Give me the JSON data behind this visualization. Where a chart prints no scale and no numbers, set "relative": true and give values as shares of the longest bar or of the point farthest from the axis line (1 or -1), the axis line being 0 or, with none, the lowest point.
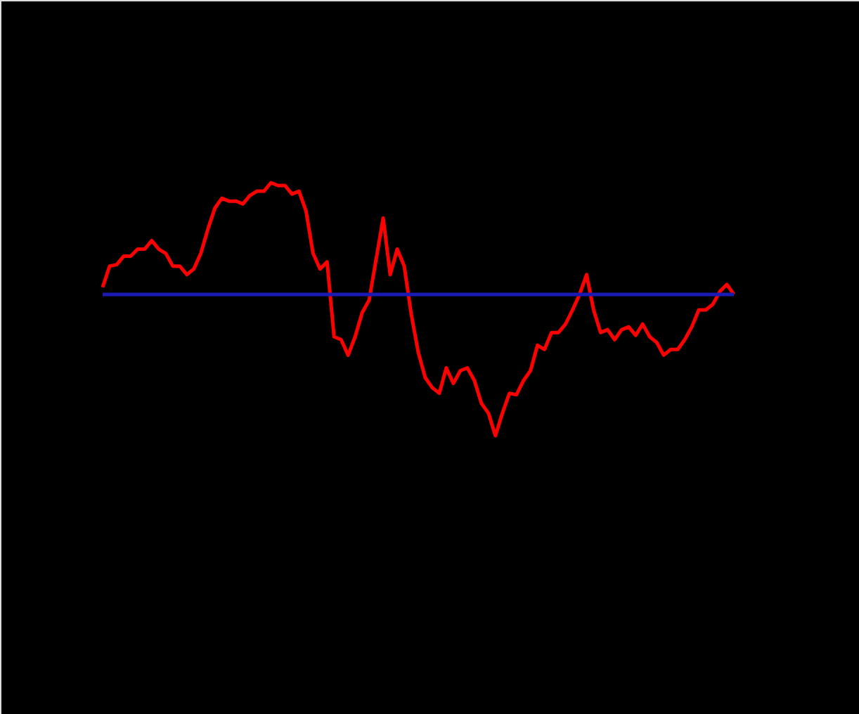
{
  "chart_data": {
    "type": "line",
    "relative": true,
    "categories": [
      null,
      null,
      null,
      null,
      null,
      null,
      null,
      null,
      null,
      null,
      null,
      null,
      null,
      null,
      null,
      null,
      null,
      null,
      null,
      null,
      null,
      null,
      null,
      null,
      null,
      null,
      null,
      null,
      null,
      null,
      null,
      null,
      null,
      null,
      null,
      null,
      null,
      null,
      null,
      null,
      null,
      null,
      null,
      null,
      null,
      null,
      null,
      null,
      null,
      null,
      null,
      null,
      null,
      null,
      null,
      null,
      null,
      null,
      null,
      null,
      null,
      null,
      null,
      null,
      null,
      null,
      null,
      null,
      null,
      null,
      null,
      null,
      null,
      null,
      null,
      null,
      null,
      null,
      null,
      null,
      null,
      null,
      null,
      null,
      null,
      null,
      null,
      null,
      null,
      null,
      null
    ],
    "series": [
      {
        "color": "#ff0000",
        "values": [
          0.05,
          0.2,
          0.21,
          0.27,
          0.27,
          0.32,
          0.32,
          0.38,
          0.32,
          0.29,
          0.2,
          0.2,
          0.14,
          0.18,
          0.29,
          0.46,
          0.61,
          0.68,
          0.66,
          0.66,
          0.64,
          0.7,
          0.73,
          0.73,
          0.79,
          0.77,
          0.77,
          0.71,
          0.73,
          0.59,
          0.29,
          0.18,
          0.23,
          -0.3,
          -0.32,
          -0.43,
          -0.3,
          -0.13,
          -0.04,
          0.25,
          0.54,
          0.14,
          0.32,
          0.2,
          -0.14,
          -0.41,
          -0.59,
          -0.66,
          -0.7,
          -0.52,
          -0.63,
          -0.54,
          -0.52,
          -0.61,
          -0.77,
          -0.84,
          -1,
          -0.84,
          -0.7,
          -0.71,
          -0.61,
          -0.54,
          -0.36,
          -0.39,
          -0.27,
          -0.27,
          -0.21,
          -0.11,
          0,
          0.14,
          -0.11,
          -0.27,
          -0.25,
          -0.32,
          -0.25,
          -0.23,
          -0.29,
          -0.21,
          -0.3,
          -0.34,
          -0.43,
          -0.39,
          -0.39,
          -0.32,
          -0.23,
          -0.11,
          -0.11,
          -0.07,
          0.02,
          0.07,
          0
        ]
      }
    ],
    "ref_lines": [
      {
        "axis": "y",
        "value": 0,
        "color": "#1a1ab4"
      }
    ]
  }
}
